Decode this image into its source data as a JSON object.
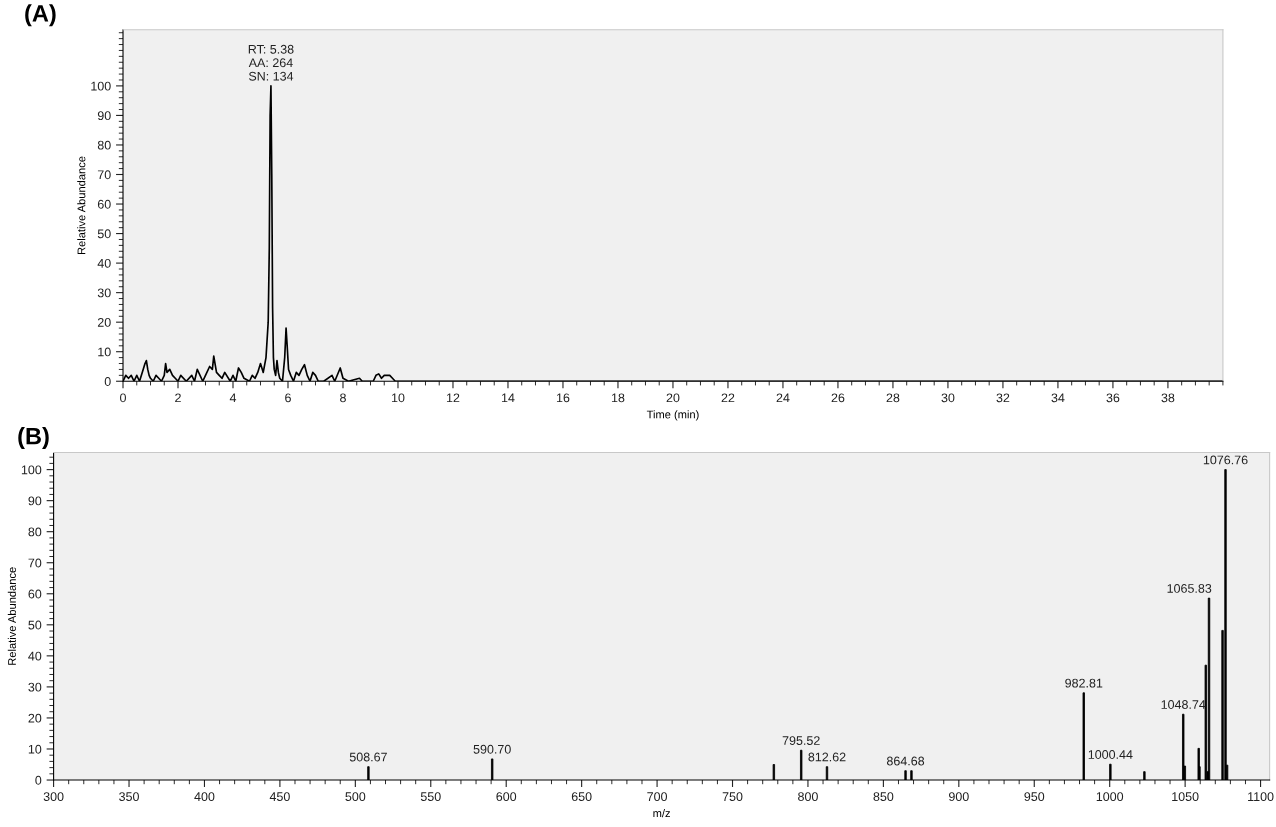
{
  "chart_data": [
    {
      "type": "line",
      "title": "(A)",
      "xlabel": "Time (min)",
      "ylabel": "Relative Abundance",
      "xlim": [
        0,
        40
      ],
      "xticks": [
        0,
        2,
        4,
        6,
        8,
        10,
        12,
        14,
        16,
        18,
        20,
        22,
        24,
        26,
        28,
        30,
        32,
        34,
        36,
        38
      ],
      "ylim": [
        0,
        119
      ],
      "yticks": [
        0,
        10,
        20,
        30,
        40,
        50,
        60,
        70,
        80,
        90,
        100
      ],
      "series": [
        {
          "color": "#000000",
          "x": [
            0,
            0.1,
            0.2,
            0.3,
            0.4,
            0.5,
            0.6,
            0.7,
            0.8,
            0.85,
            0.9,
            0.95,
            1.0,
            1.1,
            1.2,
            1.3,
            1.4,
            1.5,
            1.55,
            1.6,
            1.7,
            1.8,
            1.9,
            2.0,
            2.1,
            2.3,
            2.5,
            2.6,
            2.7,
            2.9,
            3.0,
            3.15,
            3.25,
            3.3,
            3.4,
            3.5,
            3.6,
            3.7,
            3.9,
            4.0,
            4.1,
            4.2,
            4.3,
            4.4,
            4.6,
            4.7,
            4.8,
            4.9,
            5.0,
            5.1,
            5.2,
            5.28,
            5.32,
            5.35,
            5.38,
            5.41,
            5.44,
            5.47,
            5.5,
            5.55,
            5.6,
            5.65,
            5.7,
            5.8,
            5.88,
            5.93,
            5.97,
            6.02,
            6.1,
            6.2,
            6.3,
            6.4,
            6.5,
            6.6,
            6.7,
            6.8,
            6.9,
            7.0,
            7.1,
            7.3,
            7.6,
            7.7,
            7.9,
            8.0,
            8.2,
            8.6,
            8.7,
            9.1,
            9.2,
            9.3,
            9.4,
            9.5,
            9.7,
            9.8,
            9.9,
            10.0,
            20,
            30,
            40
          ],
          "values": [
            0,
            2,
            1,
            2,
            0,
            2,
            0,
            3,
            6,
            7,
            4,
            2,
            1,
            0,
            2,
            1,
            0,
            2,
            6,
            3,
            4,
            2,
            1,
            0,
            2,
            0,
            2,
            0,
            4,
            0,
            2,
            5,
            4,
            8.5,
            3,
            2,
            1,
            3,
            0,
            2,
            0,
            4.5,
            3,
            1,
            0,
            2,
            1,
            3,
            6,
            3,
            8,
            20,
            45,
            90,
            100,
            70,
            25,
            8,
            4,
            2,
            7,
            3,
            1,
            0,
            8,
            18,
            12,
            4,
            2,
            0,
            3,
            2,
            4,
            5.6,
            2,
            0,
            3,
            2,
            0,
            0,
            2,
            0,
            4.5,
            1,
            0,
            1,
            0,
            0,
            2,
            2.5,
            1,
            2,
            2,
            1,
            0,
            0,
            0,
            0,
            0
          ]
        }
      ],
      "annotations": [
        {
          "text": "RT: 5.38\nAA: 264\nSN: 134",
          "x": 5.38,
          "y": 100
        }
      ]
    },
    {
      "type": "bar",
      "title": "(B)",
      "xlabel": "m/z",
      "ylabel": "Relative Abundance",
      "xlim": [
        300,
        1106
      ],
      "xticks": [
        300,
        350,
        400,
        450,
        500,
        550,
        600,
        650,
        700,
        750,
        800,
        850,
        900,
        950,
        1000,
        1050,
        1100
      ],
      "ylim": [
        0,
        105.5
      ],
      "yticks": [
        0,
        10,
        20,
        30,
        40,
        50,
        60,
        70,
        80,
        90,
        100
      ],
      "x": [
        508.67,
        590.7,
        777.4,
        795.52,
        812.62,
        864.68,
        868.6,
        982.81,
        1000.44,
        1023,
        1048.74,
        1049.8,
        1059,
        1059.5,
        1063.7,
        1065,
        1065.83,
        1074.8,
        1076.76,
        1077.8
      ],
      "values": [
        4.3,
        6.8,
        5.0,
        9.6,
        4.3,
        3.0,
        3.0,
        28.1,
        5.1,
        2.7,
        21.2,
        4.5,
        10.2,
        4.3,
        37,
        2.7,
        58.6,
        48.2,
        100,
        4.8
      ],
      "color": "#000000",
      "annotations": [
        {
          "text": "508.67",
          "x": 508.67,
          "y": 4.3
        },
        {
          "text": "590.70",
          "x": 590.7,
          "y": 6.8
        },
        {
          "text": "795.52",
          "x": 795.52,
          "y": 9.6
        },
        {
          "text": "812.62",
          "x": 812.62,
          "y": 4.3
        },
        {
          "text": "864.68",
          "x": 864.68,
          "y": 3.0
        },
        {
          "text": "982.81",
          "x": 982.81,
          "y": 28.1
        },
        {
          "text": "1000.44",
          "x": 1000.44,
          "y": 5.1
        },
        {
          "text": "1048.74",
          "x": 1048.74,
          "y": 21.2
        },
        {
          "text": "1065.83",
          "x": 1065.83,
          "y": 58.6
        },
        {
          "text": "1076.76",
          "x": 1076.76,
          "y": 100
        }
      ]
    }
  ]
}
